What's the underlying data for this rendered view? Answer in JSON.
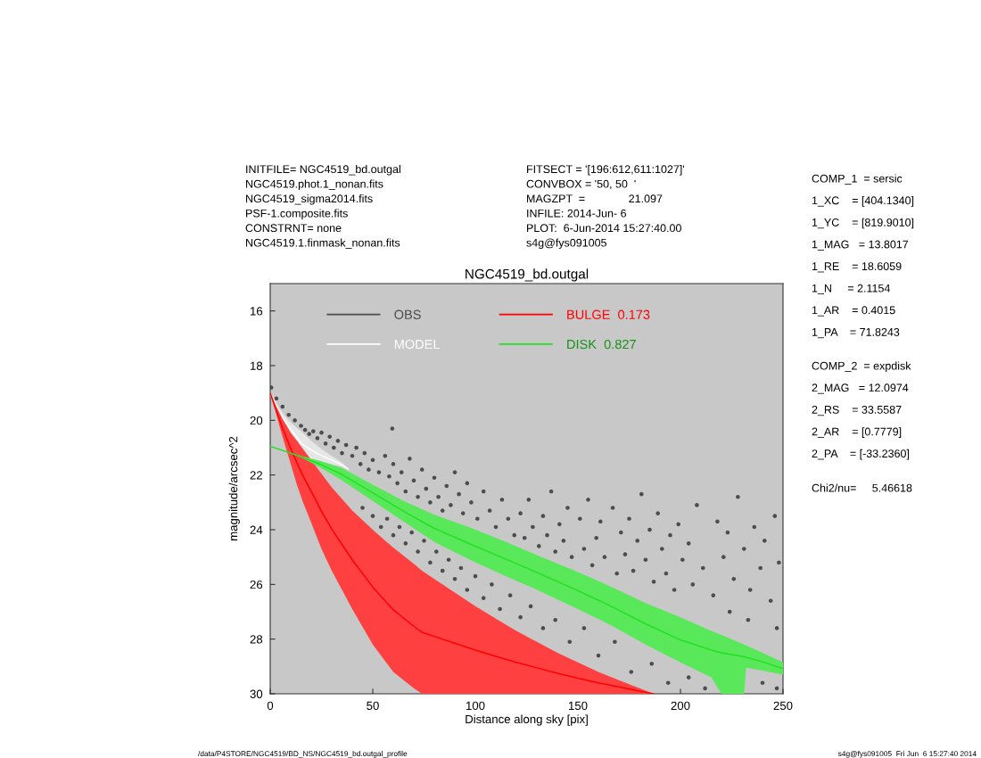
{
  "chart_data": {
    "type": "scatter",
    "title": "NGC4519_bd.outgal",
    "xlabel": "Distance along sky [pix]",
    "ylabel": "magnitude/arcsec^2",
    "xlim": [
      0,
      250
    ],
    "ylim": [
      30,
      15
    ],
    "xticks": [
      0,
      50,
      100,
      150,
      200,
      250
    ],
    "yticks": [
      16,
      18,
      20,
      22,
      24,
      26,
      28,
      30
    ],
    "legend": "top left",
    "series": [
      {
        "name": "OBS",
        "marker": "circle",
        "color": "#4d4d4d",
        "x": [
          0.5,
          3,
          6,
          9,
          12,
          15,
          17,
          19,
          21,
          23,
          25,
          27,
          29,
          31,
          33,
          35,
          37,
          40,
          42,
          44,
          46,
          48,
          50,
          53,
          56,
          59.5,
          58,
          60,
          62,
          64,
          66,
          68,
          70,
          72,
          74,
          76,
          78,
          80,
          82,
          84,
          86,
          88,
          90,
          92,
          94,
          96,
          98,
          101,
          104,
          107,
          110,
          113,
          116,
          119,
          122,
          124,
          126,
          128,
          131,
          133,
          135,
          137,
          139,
          141,
          143,
          145,
          147,
          151,
          153,
          155,
          157,
          159,
          161,
          163,
          167,
          169,
          171,
          173,
          175,
          177,
          179,
          181,
          183,
          185,
          187,
          189,
          191,
          193,
          195,
          197,
          199,
          201,
          204,
          206,
          208,
          211,
          216,
          218,
          221,
          223,
          226,
          228,
          231,
          234,
          236,
          239,
          241,
          244,
          246,
          248,
          233,
          247,
          224,
          45,
          50,
          54,
          57,
          60,
          63,
          66,
          69,
          72,
          75,
          78,
          81,
          84,
          87,
          90,
          93,
          96,
          100,
          104,
          108,
          112,
          117,
          122,
          127,
          133,
          139,
          146,
          153,
          160,
          168,
          176,
          186,
          194,
          204,
          212,
          240,
          247
        ],
        "values": [
          18.8,
          19.2,
          19.5,
          19.8,
          20.0,
          20.2,
          20.35,
          20.5,
          20.4,
          20.65,
          20.45,
          20.85,
          20.6,
          21.0,
          20.75,
          21.2,
          20.9,
          21.3,
          21.0,
          21.6,
          21.2,
          21.8,
          21.45,
          21.9,
          21.3,
          20.3,
          22.05,
          21.6,
          22.3,
          21.9,
          22.6,
          21.4,
          22.2,
          22.8,
          21.8,
          22.5,
          23.0,
          22.1,
          22.8,
          23.3,
          22.4,
          23.1,
          21.9,
          22.7,
          23.4,
          22.3,
          23.0,
          23.6,
          22.6,
          23.3,
          23.9,
          22.9,
          23.6,
          24.2,
          23.4,
          24.3,
          22.9,
          23.9,
          24.6,
          23.5,
          24.2,
          22.6,
          24.8,
          23.8,
          24.4,
          23.2,
          25.0,
          23.6,
          24.7,
          22.9,
          25.3,
          24.3,
          23.7,
          25.0,
          23.2,
          25.6,
          24.1,
          24.9,
          23.6,
          25.5,
          24.4,
          22.7,
          25.1,
          24.0,
          25.9,
          23.4,
          24.7,
          25.6,
          24.2,
          26.2,
          23.8,
          25.1,
          24.5,
          26.0,
          23.1,
          25.4,
          26.4,
          23.7,
          25.0,
          24.1,
          25.8,
          22.8,
          24.7,
          26.2,
          23.9,
          25.4,
          24.4,
          26.6,
          23.5,
          25.2,
          27.3,
          27.6,
          27.0,
          23.2,
          23.5,
          23.9,
          23.6,
          24.2,
          23.9,
          24.5,
          24.1,
          24.8,
          24.4,
          25.2,
          24.8,
          25.5,
          25.1,
          25.8,
          25.4,
          26.2,
          25.7,
          26.5,
          26.0,
          26.9,
          26.4,
          27.2,
          26.8,
          27.6,
          27.3,
          28.1,
          27.6,
          28.6,
          28.1,
          29.2,
          28.9,
          29.6,
          29.4,
          29.8,
          29.6,
          29.8
        ]
      },
      {
        "name": "MODEL",
        "type": "line",
        "color": "#ffffff",
        "x": [
          0,
          4,
          7,
          11,
          15,
          20,
          25,
          30,
          35,
          38
        ],
        "values": [
          19.03,
          19.63,
          20.02,
          20.43,
          20.83,
          21.09,
          21.29,
          21.45,
          21.63,
          21.78
        ],
        "lower": [
          18.95,
          19.5,
          19.83,
          20.15,
          20.4,
          20.75,
          21.05,
          21.3,
          21.55,
          21.75
        ],
        "upper": [
          19.1,
          19.75,
          20.2,
          20.7,
          21.25,
          21.42,
          21.52,
          21.6,
          21.7,
          21.8
        ]
      },
      {
        "name": "BULGE  0.173",
        "type": "line",
        "color": "#ff0000",
        "x": [
          0,
          3,
          6,
          10,
          13,
          16,
          20,
          25,
          30,
          40,
          50,
          56,
          60,
          70,
          74,
          80,
          90,
          100,
          110,
          120,
          130,
          140,
          150,
          160,
          170,
          180,
          187
        ],
        "values": [
          19.0,
          19.65,
          20.28,
          21.03,
          21.55,
          22.03,
          22.6,
          23.33,
          23.98,
          25.1,
          26.1,
          26.6,
          26.93,
          27.53,
          27.75,
          27.9,
          28.15,
          28.4,
          28.63,
          28.85,
          29.05,
          29.25,
          29.43,
          29.6,
          29.75,
          29.9,
          30.0
        ],
        "lower": [
          19.0,
          19.5,
          19.95,
          20.45,
          20.75,
          21.05,
          21.45,
          21.95,
          22.45,
          23.3,
          24.0,
          24.4,
          24.65,
          25.25,
          25.5,
          25.8,
          26.3,
          26.8,
          27.25,
          27.7,
          28.1,
          28.5,
          28.85,
          29.2,
          29.5,
          29.8,
          30.0
        ],
        "upper": [
          19.0,
          19.8,
          20.6,
          21.6,
          22.35,
          23.0,
          23.75,
          24.7,
          25.5,
          26.9,
          28.2,
          28.8,
          29.2,
          29.8,
          30.0,
          30.0,
          30.0,
          30.0,
          30.0,
          30.0,
          30.0,
          30.0,
          30.0,
          30.0,
          30.0,
          30.0,
          30.0
        ]
      },
      {
        "name": "DISK  0.827",
        "type": "line",
        "color": "#22e022",
        "x": [
          0,
          8,
          15,
          25,
          35,
          50,
          65,
          80,
          99,
          115,
          129,
          150,
          165,
          183,
          200,
          215,
          220,
          231,
          232,
          240,
          250
        ],
        "values": [
          20.95,
          21.15,
          21.33,
          21.63,
          21.98,
          22.65,
          23.33,
          23.95,
          24.57,
          25.08,
          25.53,
          26.23,
          26.75,
          27.44,
          28.03,
          28.4,
          28.5,
          28.65,
          28.66,
          28.83,
          29.08
        ],
        "lower": [
          20.95,
          21.15,
          21.3,
          21.5,
          21.75,
          22.35,
          22.95,
          23.45,
          23.97,
          24.45,
          24.9,
          25.55,
          26.05,
          26.68,
          27.2,
          27.7,
          27.85,
          28.2,
          28.23,
          28.5,
          28.85
        ],
        "upper": [
          20.95,
          21.15,
          21.35,
          21.75,
          22.2,
          22.95,
          23.7,
          24.45,
          25.16,
          25.7,
          26.16,
          26.9,
          27.45,
          28.2,
          28.85,
          29.4,
          30.0,
          30.0,
          29.05,
          29.15,
          29.3
        ]
      }
    ],
    "annotations": [
      "INITFILE= NGC4519_bd.outgal\nNGC4519.phot.1_nonan.fits\nNGC4519_sigma2014.fits\nPSF-1.composite.fits\nCONSTRNT= none\nNGC4519.1.finmask_nonan.fits",
      "FITSECT = '[196:612,611:1027]'\nCONVBOX = '50, 50  '\nMAGZPT  =              21.097\nINFILE: 2014-Jun- 6\nPLOT:  6-Jun-2014 15:27:40.00\ns4g@fys091005",
      "COMP_1  = sersic\n1_XC    = [404.1340]\n1_YC    = [819.9010]\n1_MAG   = 13.8017\n1_RE    = 18.6059\n1_N     = 2.1154\n1_AR    = 0.4015\n1_PA    = 71.8243",
      "COMP_2  = expdisk\n2_MAG   = 12.0974\n2_RS    = 33.5587\n2_AR    = [0.7779]\n2_PA    = [-33.2360]",
      "Chi2/nu=     5.46618",
      "/data/P4STORE/NGC4519/BD_NS/NGC4519_bd.outgal_profile",
      "s4g@fys091005  Fri Jun  6 15:27:40 2014"
    ]
  }
}
